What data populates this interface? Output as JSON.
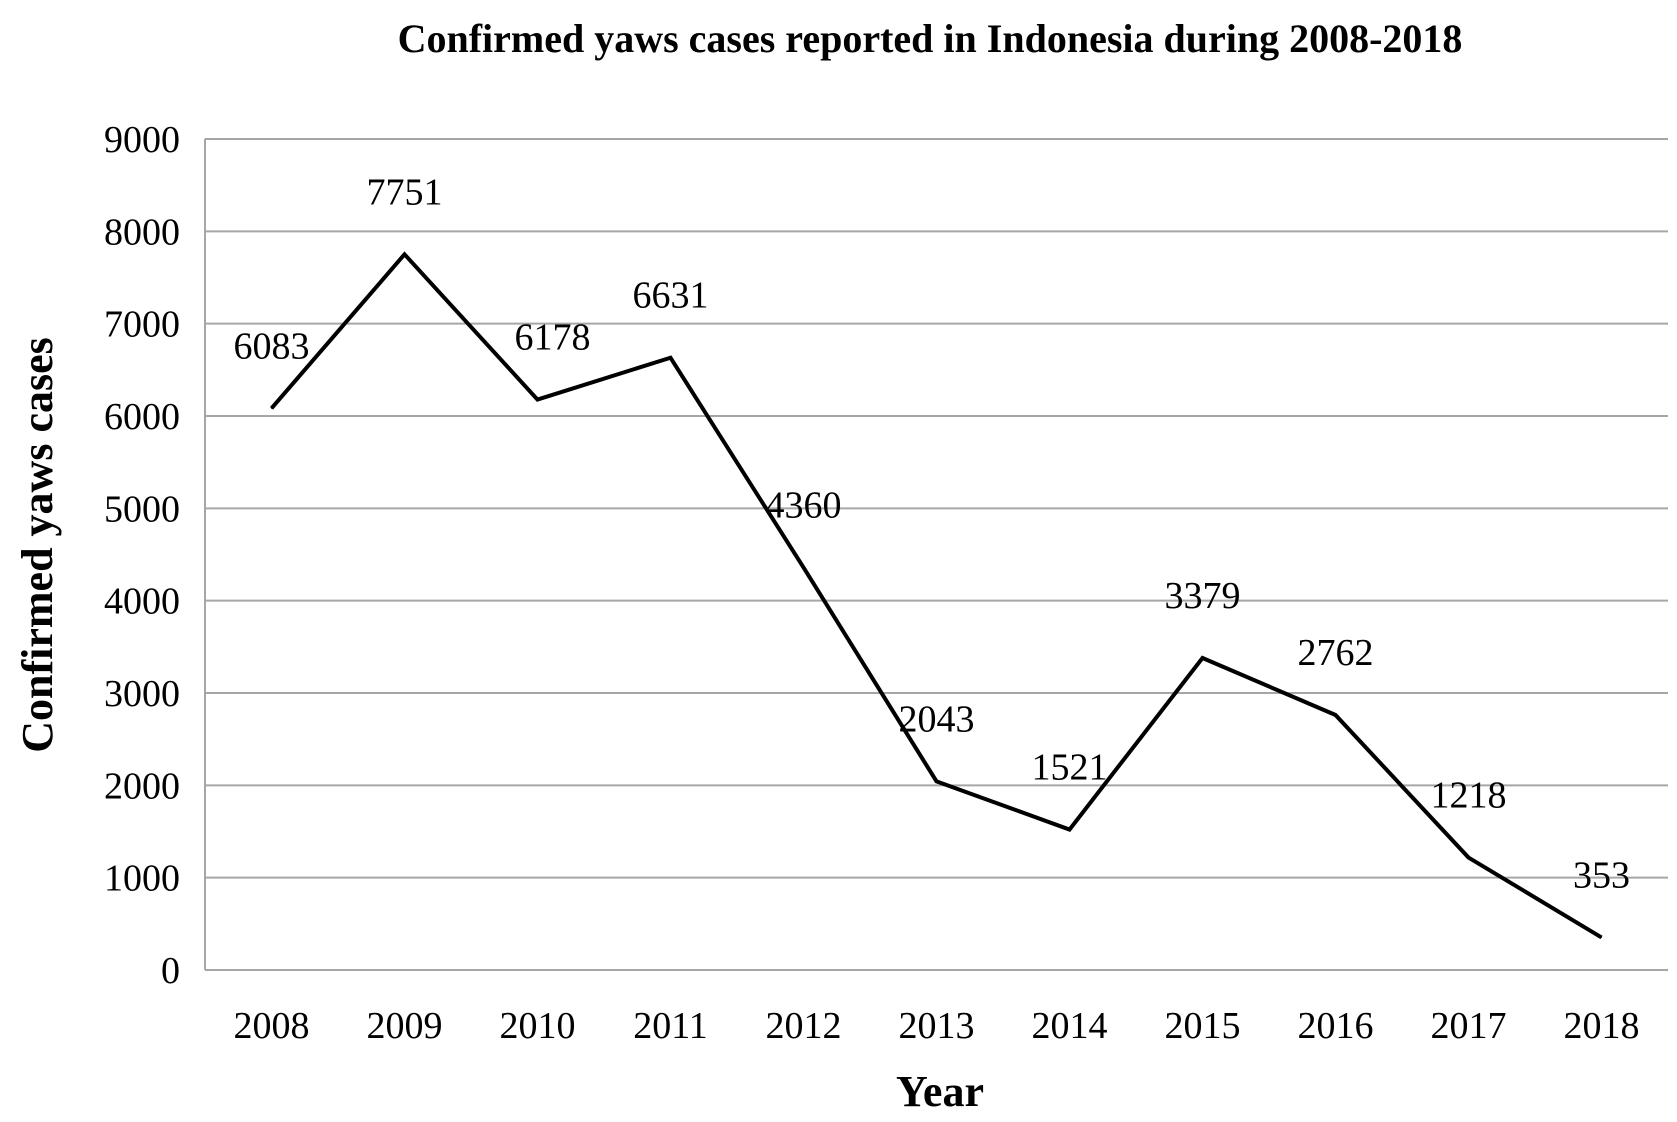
{
  "chart_data": {
    "type": "line",
    "title": "Confirmed yaws cases reported in Indonesia during 2008-2018",
    "xlabel": "Year",
    "ylabel": "Confirmed yaws cases",
    "categories": [
      "2008",
      "2009",
      "2010",
      "2011",
      "2012",
      "2013",
      "2014",
      "2015",
      "2016",
      "2017",
      "2018"
    ],
    "series": [
      {
        "values": [
          6083,
          7751,
          6178,
          6631,
          4360,
          2043,
          1521,
          3379,
          2762,
          1218,
          353
        ],
        "labels": [
          "6083",
          "7751",
          "6178",
          "6631",
          "4360",
          "2043",
          "1521",
          "3379",
          "2762",
          "1218",
          "353"
        ]
      }
    ],
    "ylim": [
      0,
      9000
    ],
    "yticks": [
      "0",
      "1000",
      "2000",
      "3000",
      "4000",
      "5000",
      "6000",
      "7000",
      "8000",
      "9000"
    ],
    "grid": true,
    "line_color": "#000000",
    "grid_color": "#a6a6a6"
  }
}
